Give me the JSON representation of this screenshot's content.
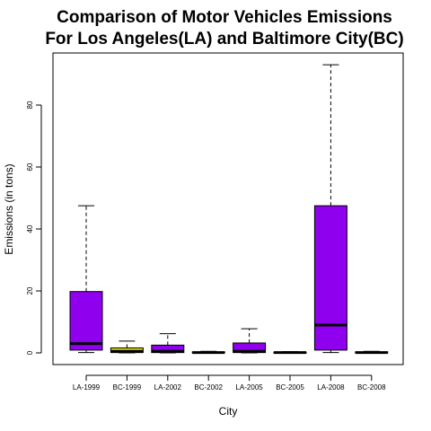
{
  "chart_data": {
    "type": "boxplot",
    "title_line1": "Comparison of Motor Vehicles Emissions",
    "title_line2": "For Los Angeles(LA) and Baltimore City(BC)",
    "xlabel": "City",
    "ylabel": "Emissions (in tons)",
    "ylim": [
      0,
      95
    ],
    "yticks": [
      0,
      20,
      40,
      60,
      80
    ],
    "grid": false,
    "colors": {
      "LA": "#8e00ee",
      "BC": "#dedd00",
      "BC_dark": "#8e00ee"
    },
    "categories": [
      "LA-1999",
      "BC-1999",
      "LA-2002",
      "BC-2002",
      "LA-2005",
      "BC-2005",
      "LA-2008",
      "BC-2008"
    ],
    "boxes": [
      {
        "label": "LA-1999",
        "min": 0.1,
        "q1": 0.9,
        "median": 3.0,
        "q3": 19.8,
        "max": 47.5,
        "color": "#8e00ee"
      },
      {
        "label": "BC-1999",
        "min": 0.0,
        "q1": 0.1,
        "median": 0.5,
        "q3": 1.6,
        "max": 3.8,
        "color": "#dedd00"
      },
      {
        "label": "LA-2002",
        "min": 0.0,
        "q1": 0.1,
        "median": 0.5,
        "q3": 2.5,
        "max": 6.2,
        "color": "#8e00ee"
      },
      {
        "label": "BC-2002",
        "min": 0.0,
        "q1": 0.0,
        "median": 0.1,
        "q3": 0.3,
        "max": 0.5,
        "color": "#8e00ee"
      },
      {
        "label": "LA-2005",
        "min": 0.0,
        "q1": 0.1,
        "median": 0.5,
        "q3": 3.2,
        "max": 7.8,
        "color": "#8e00ee"
      },
      {
        "label": "BC-2005",
        "min": 0.0,
        "q1": 0.0,
        "median": 0.1,
        "q3": 0.2,
        "max": 0.4,
        "color": "#8e00ee"
      },
      {
        "label": "LA-2008",
        "min": 0.1,
        "q1": 0.9,
        "median": 9.0,
        "q3": 47.5,
        "max": 93.0,
        "color": "#8e00ee"
      },
      {
        "label": "BC-2008",
        "min": 0.0,
        "q1": 0.0,
        "median": 0.1,
        "q3": 0.3,
        "max": 0.5,
        "color": "#8e00ee"
      }
    ]
  }
}
